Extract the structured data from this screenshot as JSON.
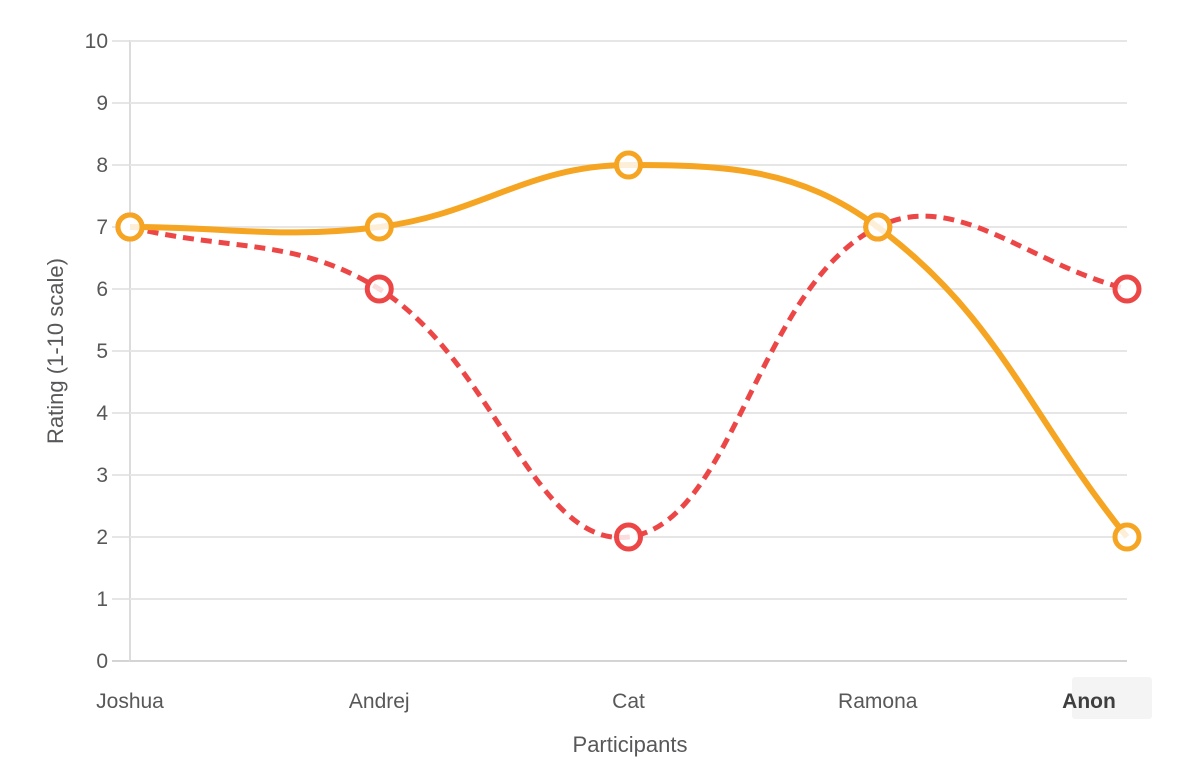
{
  "chart_data": {
    "type": "line",
    "title": "",
    "xlabel": "Participants",
    "ylabel": "Rating (1-10 scale)",
    "ylim": [
      0,
      10
    ],
    "ytick_step": 1,
    "grid": "horizontal-only",
    "legend": "none",
    "categories": [
      "Joshua",
      "Andrej",
      "Cat",
      "Ramona",
      "Anon"
    ],
    "highlighted_category": "Anon",
    "series": [
      {
        "name": "red-dashed",
        "color": "#EC4646",
        "line_style": "dashed",
        "line_width": 5,
        "marker": "open-circle",
        "values": [
          7,
          6,
          2,
          7,
          6
        ]
      },
      {
        "name": "orange-solid",
        "color": "#F5A521",
        "line_style": "solid",
        "line_width": 6,
        "marker": "open-circle",
        "values": [
          7,
          7,
          8,
          7,
          2
        ]
      }
    ],
    "style": {
      "grid_color": "#E6E6E6",
      "baseline_color": "#D4D4D4",
      "axis_color": "#DCDCDC",
      "tick_label_color": "#58585A",
      "axis_title_color": "#58585A",
      "highlight_label_color": "#3F3F3F",
      "highlight_bg_color": "#F4F4F4",
      "marker_fill": "rgba(255,255,255,0.82)",
      "curve_tension": 0.4,
      "dash_pattern": "11 7"
    }
  }
}
